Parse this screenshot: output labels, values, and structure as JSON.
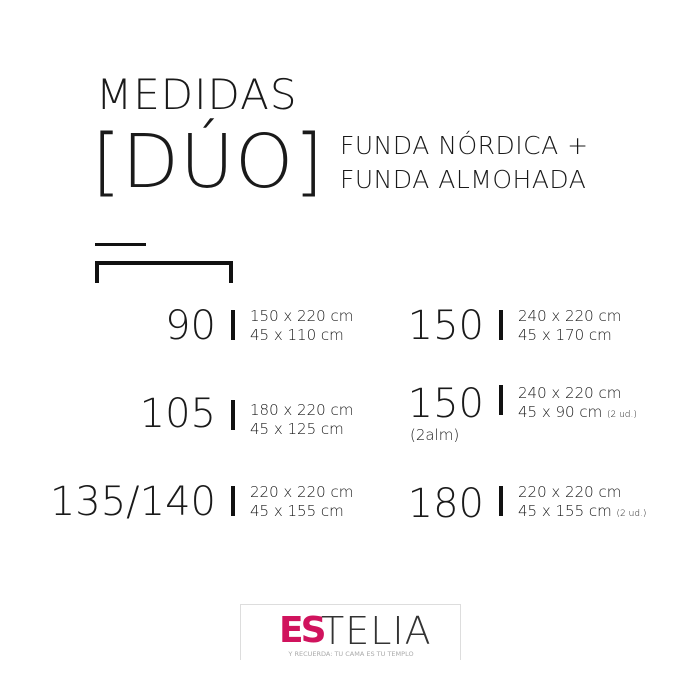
{
  "title": {
    "line1": "MEDIDAS",
    "line2": "[DÚO]",
    "subtitle1": "FUNDA NÓRDICA +",
    "subtitle2": "FUNDA ALMOHADA"
  },
  "sizes": [
    {
      "bed": "90",
      "duvet": "150 x 220 cm",
      "pillow": "45 x 110 cm"
    },
    {
      "bed": "105",
      "duvet": "180 x 220 cm",
      "pillow": "45 x 125 cm"
    },
    {
      "bed": "135/140",
      "duvet": "220 x 220 cm",
      "pillow": "45 x 155 cm"
    },
    {
      "bed": "150",
      "duvet": "240 x 220 cm",
      "pillow": "45 x 170 cm"
    },
    {
      "bed": "150",
      "note": "(2alm)",
      "duvet": "240 x 220 cm",
      "pillow": "45 x 90 cm",
      "qty": "(2 ud.)"
    },
    {
      "bed": "180",
      "duvet": "220 x 220 cm",
      "pillow": "45 x 155 cm",
      "qty": "(2 ud.)"
    }
  ],
  "logo": {
    "mark": "ES",
    "name": "TELIA",
    "tagline": "Y RECUERDA: TU CAMA ES TU TEMPLO",
    "brand_color": "#d0135d"
  }
}
